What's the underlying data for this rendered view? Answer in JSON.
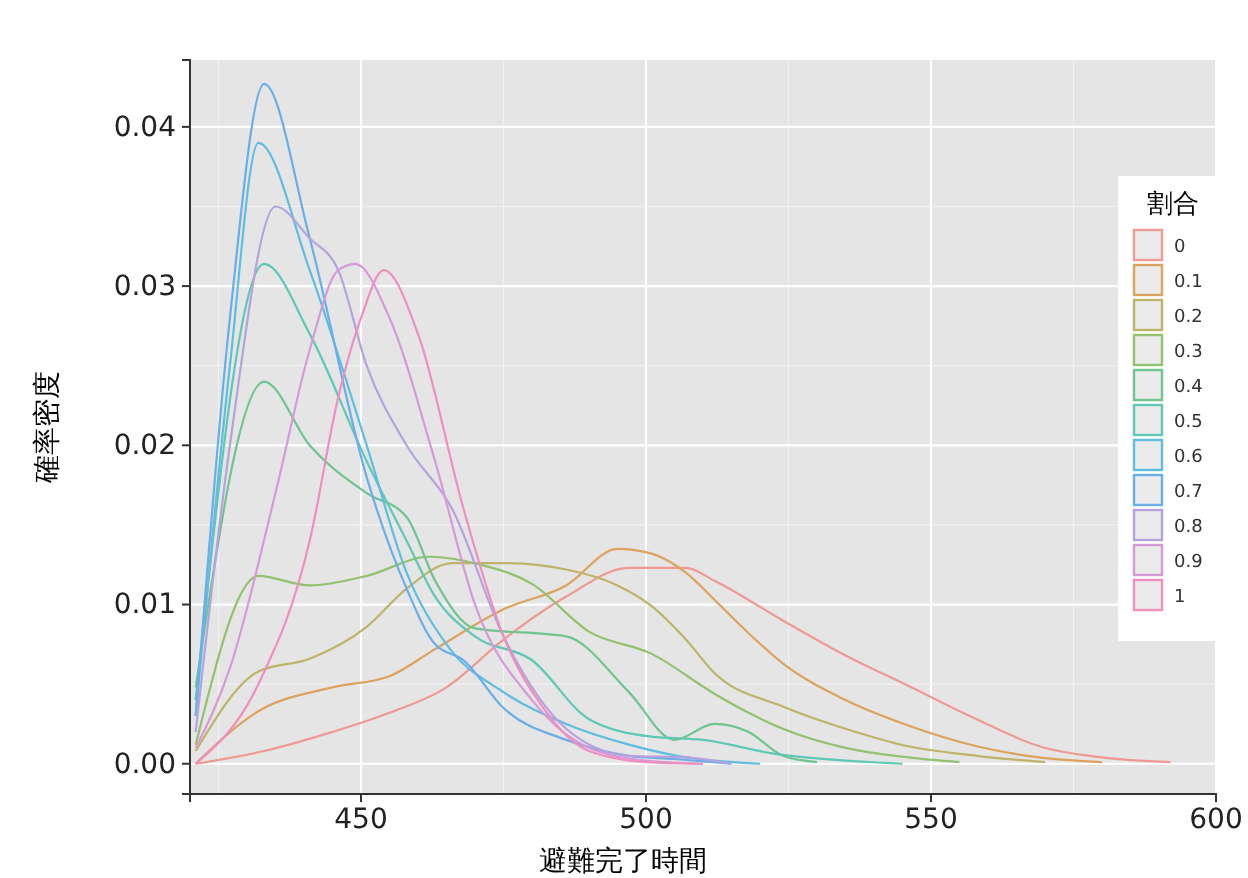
{
  "chart_data": {
    "type": "line",
    "xlabel": "避難完了時間",
    "ylabel": "確率密度",
    "legend_title": "割合",
    "legend": "right",
    "grid": true,
    "xlim": [
      420,
      600
    ],
    "xticks": [
      450,
      500,
      550,
      600
    ],
    "ylim": [
      -0.0019,
      0.0442
    ],
    "yticks": [
      {
        "value": 0,
        "label": "0.00"
      },
      {
        "value": 0.01,
        "label": "0.01"
      },
      {
        "value": 0.02,
        "label": "0.02"
      },
      {
        "value": 0.03,
        "label": "0.03"
      },
      {
        "value": 0.04,
        "label": "0.04"
      }
    ],
    "series": [
      {
        "name": "0",
        "color": "#ee9a94",
        "x": [
          421,
          433,
          445,
          455,
          465,
          475,
          486,
          497,
          507,
          512,
          524,
          535,
          546,
          558,
          569,
          580,
          592
        ],
        "values": [
          0,
          0.0008,
          0.002,
          0.0032,
          0.0048,
          0.0078,
          0.0105,
          0.0123,
          0.0123,
          0.0115,
          0.009,
          0.0068,
          0.0049,
          0.0028,
          0.0011,
          0.0004,
          0.0001
        ]
      },
      {
        "name": "0.1",
        "color": "#dca35e",
        "x": [
          421,
          432,
          445,
          455,
          463,
          475,
          486,
          495,
          501,
          507,
          512,
          518,
          524,
          535,
          546,
          558,
          569,
          580
        ],
        "values": [
          0,
          0.0033,
          0.0048,
          0.0055,
          0.0072,
          0.0097,
          0.0112,
          0.0135,
          0.0132,
          0.012,
          0.0103,
          0.0082,
          0.0063,
          0.004,
          0.0024,
          0.0011,
          0.0004,
          0.0001
        ]
      },
      {
        "name": "0.2",
        "color": "#bdb46a",
        "x": [
          421,
          432,
          441,
          451,
          458,
          466,
          475,
          486,
          495,
          501,
          507,
          512,
          524,
          535,
          546,
          558,
          570
        ],
        "values": [
          0.0008,
          0.0058,
          0.0066,
          0.0086,
          0.011,
          0.0126,
          0.0126,
          0.0122,
          0.0112,
          0.0099,
          0.0078,
          0.0057,
          0.0036,
          0.0022,
          0.0011,
          0.0005,
          0.0001
        ]
      },
      {
        "name": "0.3",
        "color": "#93c16f",
        "x": [
          421,
          432,
          441,
          451,
          462,
          471,
          480,
          490,
          501,
          512,
          518,
          524,
          535,
          546,
          555
        ],
        "values": [
          0.0012,
          0.0118,
          0.0112,
          0.0118,
          0.013,
          0.0125,
          0.0113,
          0.0083,
          0.0069,
          0.0044,
          0.0032,
          0.0022,
          0.001,
          0.0004,
          0.0001
        ]
      },
      {
        "name": "0.4",
        "color": "#6fc48f",
        "x": [
          421,
          433,
          441,
          451,
          458,
          463,
          470,
          486,
          497,
          505,
          512,
          518,
          524,
          530
        ],
        "values": [
          0.0048,
          0.024,
          0.02,
          0.017,
          0.0155,
          0.0115,
          0.0085,
          0.008,
          0.0045,
          0.0015,
          0.0025,
          0.002,
          0.0005,
          0.0001
        ]
      },
      {
        "name": "0.5",
        "color": "#5fc8b4",
        "x": [
          421,
          433,
          441,
          451,
          458,
          463,
          470,
          480,
          490,
          501,
          510,
          523,
          535,
          545
        ],
        "values": [
          0.004,
          0.0314,
          0.027,
          0.019,
          0.014,
          0.0105,
          0.008,
          0.0065,
          0.0028,
          0.0017,
          0.0015,
          0.0006,
          0.0002,
          0
        ]
      },
      {
        "name": "0.6",
        "color": "#5fbde0",
        "x": [
          421,
          427,
          432,
          441,
          451,
          458,
          465,
          475,
          486,
          497,
          507,
          520
        ],
        "values": [
          0.003,
          0.025,
          0.039,
          0.031,
          0.02,
          0.012,
          0.0075,
          0.0045,
          0.0025,
          0.0012,
          0.0004,
          0
        ]
      },
      {
        "name": "0.7",
        "color": "#6aaee8",
        "x": [
          421,
          427,
          433,
          441,
          451,
          458,
          463,
          468,
          475,
          486,
          497,
          505,
          515
        ],
        "values": [
          0.003,
          0.028,
          0.0427,
          0.033,
          0.018,
          0.011,
          0.0075,
          0.0065,
          0.0035,
          0.0015,
          0.0005,
          0.0003,
          0
        ]
      },
      {
        "name": "0.8",
        "color": "#b6a2dc",
        "x": [
          421,
          427,
          435,
          441,
          446,
          451,
          458,
          466,
          475,
          486,
          497,
          507,
          515
        ],
        "values": [
          0.002,
          0.02,
          0.035,
          0.033,
          0.031,
          0.025,
          0.02,
          0.016,
          0.008,
          0.0022,
          0.0005,
          0.0004,
          0
        ]
      },
      {
        "name": "0.9",
        "color": "#d79ad8",
        "x": [
          421,
          427,
          435,
          441,
          446,
          449,
          455,
          463,
          470,
          480,
          490,
          500,
          510
        ],
        "values": [
          0.001,
          0.006,
          0.017,
          0.026,
          0.031,
          0.0314,
          0.028,
          0.019,
          0.01,
          0.004,
          0.001,
          0.0002,
          0
        ]
      },
      {
        "name": "1",
        "color": "#ef8fc0",
        "x": [
          421,
          432,
          441,
          446,
          450,
          454,
          460,
          468,
          475,
          482,
          490,
          500,
          510
        ],
        "values": [
          0,
          0.005,
          0.014,
          0.023,
          0.028,
          0.031,
          0.027,
          0.016,
          0.008,
          0.0035,
          0.0008,
          0.0001,
          0
        ]
      }
    ]
  }
}
